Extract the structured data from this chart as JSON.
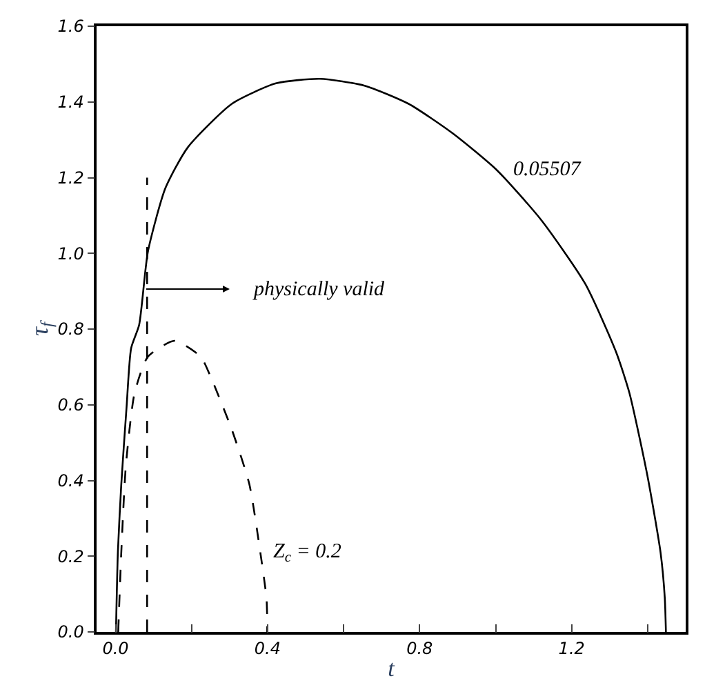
{
  "chart_data": {
    "type": "line",
    "xlabel": "t",
    "ylabel": "τ$_{f}$",
    "xlim": [
      -0.05,
      1.5
    ],
    "ylim": [
      0,
      1.6
    ],
    "xticks": [
      {
        "value": 0,
        "label": "0.0"
      },
      {
        "value": 0.2,
        "label": null
      },
      0.4,
      {
        "value": 0.6,
        "label": null
      },
      0.8,
      {
        "value": 1.0,
        "label": null
      },
      1.2,
      {
        "value": 1.4,
        "label": null
      }
    ],
    "yticks": [
      {
        "value": 0,
        "label": "0.0"
      },
      0.2,
      0.4,
      0.6,
      0.8,
      {
        "value": 1.0,
        "label": "1.0"
      },
      1.2,
      1.4,
      1.6
    ],
    "legend": false,
    "marker": "none",
    "series": [
      {
        "name": "0.05507",
        "color": "#000000",
        "line_style": "solid",
        "x": [
          0.001,
          0.006,
          0.015,
          0.029,
          0.041,
          0.062,
          0.085,
          0.131,
          0.19,
          0.306,
          0.422,
          0.538,
          0.655,
          0.771,
          0.887,
          1.003,
          1.12,
          1.236,
          1.317,
          1.352,
          1.399,
          1.434,
          1.445,
          1.448
        ],
        "values": [
          0,
          0.21,
          0.39,
          0.595,
          0.75,
          0.811,
          1.004,
          1.172,
          1.28,
          1.395,
          1.449,
          1.461,
          1.443,
          1.395,
          1.317,
          1.22,
          1.088,
          0.919,
          0.739,
          0.631,
          0.414,
          0.209,
          0.09,
          0
        ]
      },
      {
        "name": "Z$_{c}$ = 0.2",
        "color": "#000000",
        "line_style": "dashed",
        "x": [
          0.007,
          0.015,
          0.027,
          0.05,
          0.085,
          0.155,
          0.224,
          0.248,
          0.306,
          0.352,
          0.381,
          0.397,
          0.399,
          0.399
        ],
        "values": [
          0,
          0.21,
          0.438,
          0.631,
          0.727,
          0.769,
          0.727,
          0.679,
          0.534,
          0.39,
          0.209,
          0.09,
          0.03,
          0
        ]
      },
      {
        "color": "#000000",
        "line_style": "dashed",
        "x": [
          0.083,
          0.083
        ],
        "values": [
          0,
          1.2
        ]
      }
    ],
    "annotations": [
      "physically valid"
    ]
  }
}
